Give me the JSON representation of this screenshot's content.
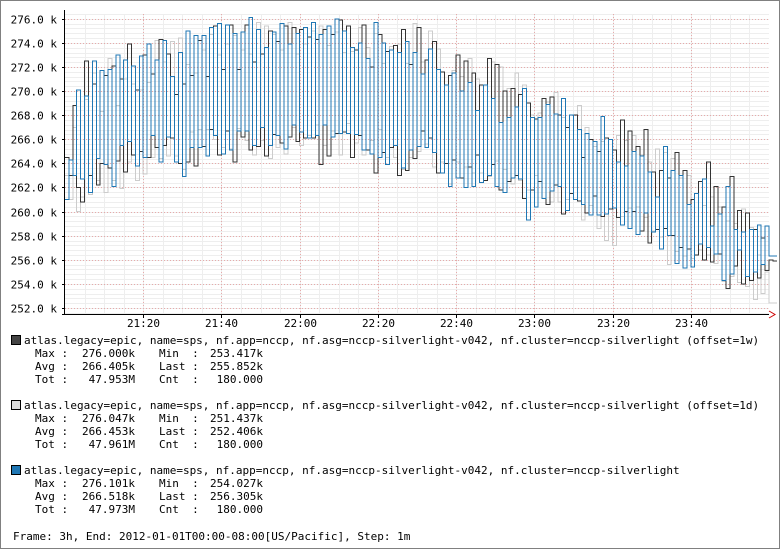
{
  "chart_data": {
    "type": "line",
    "step_interpolation": true,
    "grid": true,
    "ylim": [
      251.5,
      276.4
    ],
    "y_ticks": [
      252.0,
      254.0,
      256.0,
      258.0,
      260.0,
      262.0,
      264.0,
      266.0,
      268.0,
      270.0,
      272.0,
      274.0,
      276.0
    ],
    "y_tick_labels": [
      "252.0 k",
      "254.0 k",
      "256.0 k",
      "258.0 k",
      "260.0 k",
      "262.0 k",
      "264.0 k",
      "266.0 k",
      "268.0 k",
      "270.0 k",
      "272.0 k",
      "274.0 k",
      "276.0 k"
    ],
    "x_tick_labels": [
      "21:20",
      "21:40",
      "22:00",
      "22:20",
      "22:40",
      "23:00",
      "23:20",
      "23:40"
    ],
    "x_tick_minutes": [
      20,
      40,
      60,
      80,
      100,
      120,
      140,
      160
    ],
    "x_range_minutes": [
      0,
      180
    ],
    "x_step_minutes": 1,
    "series": [
      {
        "name": "atlas.legacy=epic, name=sps, nf.app=nccp, nf.asg=nccp-silverlight-v042, nf.cluster=nccp-silverlight (offset=1w)",
        "color": "#333333",
        "legend_swatch": "#444444",
        "stats": {
          "max": "276.000k",
          "min": "253.417k",
          "avg": "266.405k",
          "last": "255.852k",
          "tot": "47.953M",
          "cnt": "180.000"
        },
        "values": [
          264.5,
          263.0,
          268.8,
          262.0,
          260.8,
          272.5,
          263.0,
          270.6,
          262.2,
          264.0,
          271.3,
          263.6,
          272.1,
          264.2,
          271.0,
          263.3,
          273.9,
          264.7,
          270.1,
          265.0,
          273.0,
          264.5,
          271.4,
          265.3,
          274.3,
          265.5,
          273.1,
          266.1,
          269.7,
          264.0,
          270.6,
          264.1,
          271.3,
          263.8,
          274.2,
          265.4,
          271.2,
          266.8,
          275.4,
          264.7,
          271.8,
          266.7,
          275.5,
          264.1,
          271.8,
          266.2,
          275.5,
          265.1,
          272.4,
          265.4,
          273.1,
          264.6,
          275.0,
          266.4,
          274.1,
          265.7,
          275.4,
          266.2,
          275.3,
          265.8,
          275.1,
          266.1,
          274.5,
          266.1,
          274.3,
          263.9,
          275.1,
          264.6,
          274.7,
          266.5,
          275.9,
          266.6,
          275.4,
          264.5,
          273.4,
          266.3,
          275.5,
          265.1,
          272.0,
          263.2,
          274.7,
          264.9,
          273.3,
          265.3,
          273.8,
          263.0,
          275.1,
          263.4,
          272.2,
          264.4,
          275.3,
          266.7,
          272.6,
          266.1,
          274.1,
          263.2,
          271.6,
          264.0,
          271.3,
          264.3,
          273.0,
          262.8,
          272.5,
          263.7,
          271.5,
          264.7,
          270.5,
          262.6,
          272.7,
          263.9,
          272.2,
          261.8,
          270.0,
          262.5,
          270.2,
          263.0,
          269.7,
          261.1,
          269.0,
          261.8,
          267.7,
          262.5,
          269.4,
          260.6,
          269.5,
          262.2,
          268.0,
          259.8,
          267.0,
          261.5,
          268.0,
          260.9,
          264.5,
          259.9,
          266.0,
          261.3,
          265.0,
          259.6,
          266.1,
          260.2,
          265.1,
          259.5,
          267.6,
          260.0,
          266.7,
          260.0,
          265.4,
          258.4,
          266.8,
          257.4,
          263.3,
          258.5,
          263.4,
          258.6,
          262.8,
          258.0,
          264.9,
          257.0,
          263.4,
          256.9,
          261.0,
          256.4,
          262.5,
          256.0,
          264.1,
          255.8,
          262.1,
          256.5,
          260.4,
          253.6,
          262.9,
          255.5,
          260.1,
          254.0,
          259.9,
          254.3,
          258.5,
          254.5,
          257.8,
          255.1,
          256.0,
          255.9
        ]
      },
      {
        "name": "atlas.legacy=epic, name=sps, nf.app=nccp, nf.asg=nccp-silverlight-v042, nf.cluster=nccp-silverlight (offset=1d)",
        "color": "#cccccc",
        "legend_swatch": "#dddddd",
        "stats": {
          "max": "276.047k",
          "min": "251.437k",
          "avg": "266.453k",
          "last": "252.406k",
          "tot": "47.961M",
          "cnt": "180.000"
        },
        "values": [
          263.0,
          261.0,
          267.0,
          260.0,
          261.2,
          269.3,
          261.4,
          271.5,
          262.6,
          268.3,
          261.6,
          272.7,
          262.6,
          268.8,
          261.9,
          271.0,
          264.1,
          270.6,
          262.6,
          270.1,
          263.1,
          270.7,
          264.5,
          274.2,
          264.4,
          272.4,
          264.6,
          274.1,
          264.6,
          274.4,
          263.5,
          272.2,
          266.6,
          271.5,
          266.8,
          273.4,
          266.8,
          274.7,
          266.0,
          273.0,
          265.3,
          273.9,
          265.2,
          274.6,
          266.9,
          273.4,
          265.9,
          273.1,
          264.7,
          275.7,
          265.9,
          275.4,
          264.4,
          274.7,
          265.3,
          273.4,
          264.8,
          275.7,
          267.0,
          273.1,
          265.5,
          273.9,
          266.3,
          275.0,
          267.2,
          275.4,
          265.5,
          273.8,
          266.7,
          274.9,
          264.7,
          273.2,
          267.3,
          273.3,
          265.7,
          275.3,
          264.7,
          273.6,
          265.9,
          274.8,
          266.8,
          272.3,
          264.5,
          273.7,
          264.5,
          273.9,
          263.5,
          272.3,
          264.5,
          275.6,
          265.0,
          272.4,
          265.6,
          275.0,
          263.7,
          273.5,
          264.1,
          270.5,
          262.3,
          271.7,
          264.1,
          271.2,
          263.7,
          272.7,
          263.2,
          271.0,
          263.2,
          270.5,
          262.9,
          272.4,
          264.2,
          272.0,
          263.5,
          270.2,
          262.3,
          271.5,
          262.6,
          270.5,
          261.8,
          268.0,
          263.0,
          268.2,
          261.1,
          269.1,
          260.8,
          269.9,
          260.8,
          267.8,
          261.0,
          266.0,
          262.0,
          268.8,
          259.3,
          267.0,
          260.5,
          265.4,
          258.6,
          265.8,
          257.6,
          266.0,
          257.2,
          266.3,
          259.6,
          265.9,
          260.3,
          266.3,
          260.4,
          264.7,
          259.5,
          264.1,
          258.4,
          265.2,
          257.9,
          264.9,
          255.6,
          264.4,
          256.7,
          262.8,
          256.3,
          263.0,
          256.1,
          261.5,
          256.8,
          260.5,
          256.4,
          261.2,
          255.7,
          260.4,
          254.2,
          259.2,
          254.6,
          259.0,
          254.1,
          260.2,
          253.8,
          258.7,
          252.7,
          256.4,
          253.2,
          255.0,
          252.4,
          252.4
        ]
      },
      {
        "name": "atlas.legacy=epic, name=sps, nf.app=nccp, nf.asg=nccp-silverlight-v042, nf.cluster=nccp-silverlight",
        "color": "#1f77b4",
        "legend_swatch": "#1f77b4",
        "stats": {
          "max": "276.101k",
          "min": "254.027k",
          "avg": "266.518k",
          "last": "256.305k",
          "tot": "47.973M",
          "cnt": "180.000"
        },
        "values": [
          261.0,
          264.3,
          263.0,
          270.1,
          262.7,
          269.6,
          261.6,
          272.5,
          264.4,
          271.7,
          263.9,
          271.8,
          262.1,
          273.0,
          265.5,
          272.6,
          265.8,
          272.1,
          263.8,
          272.9,
          264.5,
          273.9,
          266.3,
          272.6,
          264.1,
          274.2,
          266.2,
          271.2,
          264.1,
          273.2,
          262.9,
          275.0,
          265.3,
          274.6,
          265.3,
          274.6,
          264.6,
          275.3,
          266.3,
          275.6,
          264.8,
          275.5,
          265.1,
          274.8,
          266.7,
          274.9,
          266.7,
          276.1,
          265.5,
          275.1,
          267.0,
          273.6,
          265.5,
          274.9,
          266.3,
          275.6,
          265.2,
          273.9,
          267.2,
          274.8,
          266.6,
          275.3,
          266.1,
          275.7,
          266.3,
          274.7,
          267.2,
          275.4,
          266.2,
          276.0,
          266.5,
          275.0,
          266.5,
          273.6,
          266.4,
          274.0,
          265.1,
          272.7,
          264.8,
          275.7,
          264.5,
          274.0,
          263.9,
          273.4,
          265.5,
          273.2,
          263.6,
          274.1,
          265.1,
          273.2,
          265.4,
          271.4,
          265.3,
          273.5,
          264.9,
          271.8,
          263.2,
          270.5,
          262.1,
          271.5,
          262.8,
          270.0,
          262.0,
          270.7,
          262.1,
          268.4,
          262.4,
          270.5,
          263.0,
          269.4,
          262.1,
          267.4,
          261.6,
          267.8,
          262.8,
          268.7,
          262.7,
          270.2,
          259.3,
          267.8,
          260.4,
          267.8,
          261.1,
          268.9,
          261.7,
          268.1,
          262.1,
          269.4,
          260.1,
          268.0,
          261.0,
          266.8,
          260.6,
          266.5,
          259.7,
          265.8,
          259.7,
          267.9,
          259.8,
          266.0,
          260.3,
          264.1,
          258.9,
          263.8,
          258.6,
          265.0,
          258.1,
          264.6,
          259.9,
          263.3,
          258.3,
          261.2,
          256.9,
          265.4,
          258.0,
          263.4,
          255.7,
          263.0,
          255.3,
          260.6,
          255.4,
          261.5,
          257.3,
          262.7,
          257.0,
          258.8,
          256.5,
          259.8,
          254.3,
          262.1,
          254.8,
          258.5,
          256.8,
          258.3,
          254.6,
          258.5,
          255.0,
          258.9,
          255.6,
          258.8,
          256.3,
          256.3
        ]
      }
    ]
  },
  "legend": [
    {
      "label": "atlas.legacy=epic, name=sps, nf.app=nccp, nf.asg=nccp-silverlight-v042, nf.cluster=nccp-silverlight (offset=1w)",
      "swatch_color": "#444444",
      "max_label": "Max :",
      "max": "276.000k",
      "min_label": "Min  :",
      "min": "253.417k",
      "avg_label": "Avg :",
      "avg": "266.405k",
      "last_label": "Last :",
      "last": "255.852k",
      "tot_label": "Tot :",
      "tot": "47.953M",
      "cnt_label": "Cnt  :",
      "cnt": "180.000"
    },
    {
      "label": "atlas.legacy=epic, name=sps, nf.app=nccp, nf.asg=nccp-silverlight-v042, nf.cluster=nccp-silverlight (offset=1d)",
      "swatch_color": "#dddddd",
      "max_label": "Max :",
      "max": "276.047k",
      "min_label": "Min  :",
      "min": "251.437k",
      "avg_label": "Avg :",
      "avg": "266.453k",
      "last_label": "Last :",
      "last": "252.406k",
      "tot_label": "Tot :",
      "tot": "47.961M",
      "cnt_label": "Cnt  :",
      "cnt": "180.000"
    },
    {
      "label": "atlas.legacy=epic, name=sps, nf.app=nccp, nf.asg=nccp-silverlight-v042, nf.cluster=nccp-silverlight",
      "swatch_color": "#1f77b4",
      "max_label": "Max :",
      "max": "276.101k",
      "min_label": "Min  :",
      "min": "254.027k",
      "avg_label": "Avg :",
      "avg": "266.518k",
      "last_label": "Last :",
      "last": "256.305k",
      "tot_label": "Tot :",
      "tot": "47.973M",
      "cnt_label": "Cnt  :",
      "cnt": "180.000"
    }
  ],
  "footer": "Frame: 3h, End: 2012-01-01T00:00-08:00[US/Pacific], Step: 1m"
}
